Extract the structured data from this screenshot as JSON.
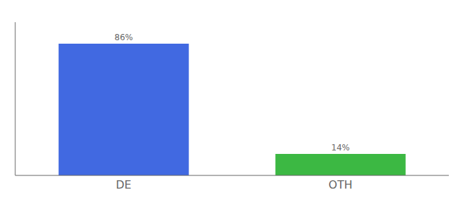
{
  "chart_data": {
    "type": "bar",
    "categories": [
      "DE",
      "OTH"
    ],
    "values": [
      86,
      14
    ],
    "value_labels": [
      "86%",
      "14%"
    ],
    "data_labels": true,
    "colors": [
      "#4169e1",
      "#3cb843"
    ],
    "ylim": [
      0,
      100
    ],
    "grid": false,
    "tick_labels": "x"
  }
}
